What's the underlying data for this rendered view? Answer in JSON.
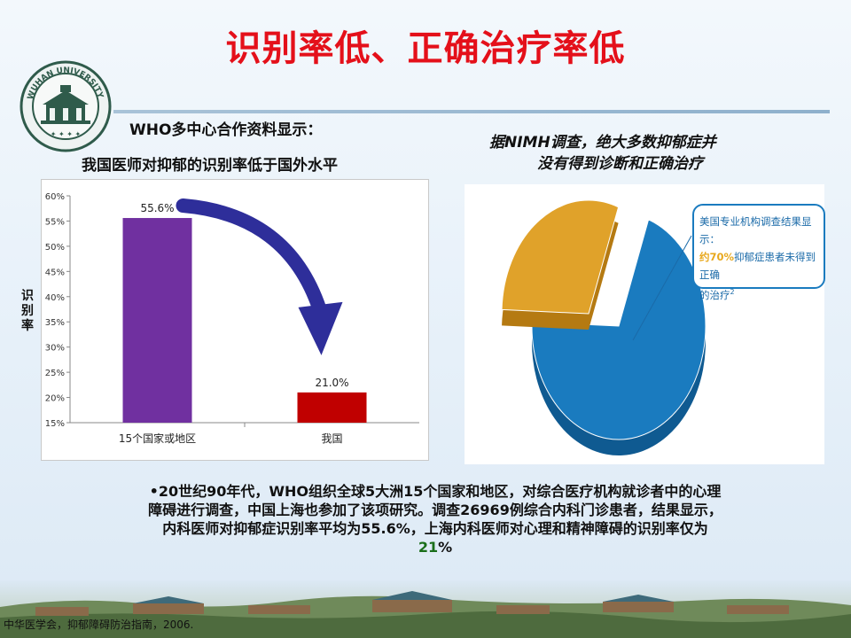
{
  "slide": {
    "title": "识别率低、正确治疗率低",
    "who_heading": "WHO多中心合作资料显示：",
    "who_subheading": "我国医师对抑郁的识别率低于国外水平",
    "nimh_line1": "据NIMH调查，绝大多数抑郁症并",
    "nimh_line2": "没有得到诊断和正确治疗",
    "y_axis_label": "识别率",
    "body_line1": "•20世纪90年代，WHO组织全球5大洲15个国家和地区，对综合医疗机构就诊者中的心理",
    "body_line2": "障碍进行调查，中国上海也参加了该项研究。调查26969例综合内科门诊患者，结果显示，",
    "body_line3": "内科医师对抑郁症识别率平均为55.6%，上海内科医师对心理和精神障碍的识别率仅为",
    "body_highlight": "21",
    "body_suffix": "%",
    "footer": "中华医学会，抑郁障碍防治指南，2006."
  },
  "callout": {
    "line1": "美国专业机构调查结果显示：",
    "line2_highlight": "约70%",
    "line2_rest": "抑郁症患者未得到正确",
    "line3": "的治疗",
    "sup": "2"
  },
  "colors": {
    "title": "#e4101a",
    "bar_world": "#7030a0",
    "bar_china": "#c00000",
    "arrow": "#2e2e9a",
    "pie_major": "#1a7bbf",
    "pie_minor": "#e0a22a",
    "highlight_green": "#1a6e1a"
  },
  "chart_data": [
    {
      "type": "bar",
      "categories": [
        "15个国家或地区",
        "我国"
      ],
      "values": [
        55.6,
        21.0
      ],
      "data_labels": [
        "55.6%",
        "21.0%"
      ],
      "ylim": [
        15,
        60
      ],
      "yticks": [
        "15%",
        "20%",
        "25%",
        "30%",
        "35%",
        "40%",
        "45%",
        "50%",
        "55%",
        "60%"
      ],
      "ytick_values": [
        15,
        20,
        25,
        30,
        35,
        40,
        45,
        50,
        55,
        60
      ],
      "ylabel": "识别率",
      "grid": false
    },
    {
      "type": "pie",
      "values": [
        70,
        30
      ],
      "style": "3d-exploded"
    }
  ]
}
